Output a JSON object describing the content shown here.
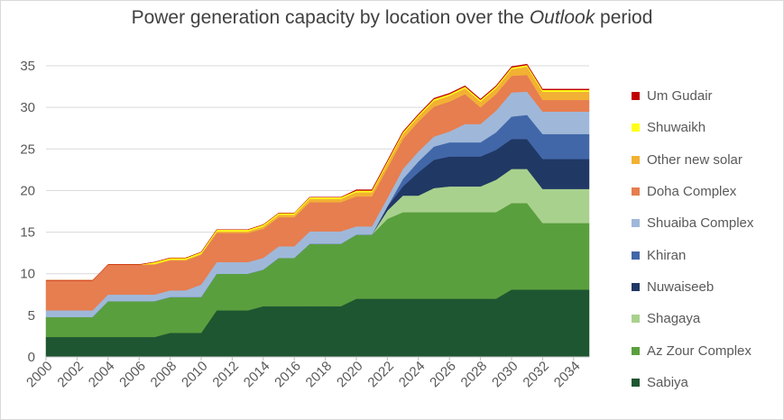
{
  "chart_data": {
    "type": "area",
    "stacked": true,
    "title_main": "Power generation capacity by location over the ",
    "title_italic": "Outlook",
    "title_end": " period",
    "xlabel": "",
    "ylabel": "",
    "ylim": [
      0,
      35
    ],
    "y_ticks": [
      "0",
      "5",
      "10",
      "15",
      "20",
      "25",
      "30",
      "35"
    ],
    "x_ticks": [
      "2000",
      "2002",
      "2004",
      "2006",
      "2008",
      "2010",
      "2012",
      "2014",
      "2016",
      "2018",
      "2020",
      "2022",
      "2024",
      "2026",
      "2028",
      "2030",
      "2032",
      "2034"
    ],
    "grid": true,
    "legend_position": "right",
    "x": [
      2000,
      2001,
      2002,
      2003,
      2004,
      2005,
      2006,
      2007,
      2008,
      2009,
      2010,
      2011,
      2012,
      2013,
      2014,
      2015,
      2016,
      2017,
      2018,
      2019,
      2020,
      2021,
      2022,
      2023,
      2024,
      2025,
      2026,
      2027,
      2028,
      2029,
      2030,
      2031,
      2032,
      2033,
      2034,
      2035
    ],
    "series": [
      {
        "name": "Sabiya",
        "color": "#1e5631",
        "values": [
          2.4,
          2.4,
          2.4,
          2.4,
          2.4,
          2.4,
          2.4,
          2.4,
          2.9,
          2.9,
          2.9,
          5.6,
          5.6,
          5.6,
          6.1,
          6.1,
          6.1,
          6.1,
          6.1,
          6.1,
          7.0,
          7.0,
          7.0,
          7.0,
          7.0,
          7.0,
          7.0,
          7.0,
          7.0,
          7.0,
          8.1,
          8.1,
          8.1,
          8.1,
          8.1,
          8.1
        ]
      },
      {
        "name": "Az Zour Complex",
        "color": "#5a9f3e",
        "values": [
          2.4,
          2.4,
          2.4,
          2.4,
          4.3,
          4.3,
          4.3,
          4.3,
          4.3,
          4.3,
          4.3,
          4.4,
          4.4,
          4.4,
          4.4,
          5.8,
          5.8,
          7.5,
          7.5,
          7.5,
          7.7,
          7.7,
          9.6,
          10.4,
          10.4,
          10.4,
          10.4,
          10.4,
          10.4,
          10.4,
          10.4,
          10.4,
          8.0,
          8.0,
          8.0,
          8.0
        ]
      },
      {
        "name": "Shagaya",
        "color": "#a9d18e",
        "values": [
          0,
          0,
          0,
          0,
          0,
          0,
          0,
          0,
          0,
          0,
          0,
          0,
          0,
          0,
          0,
          0,
          0,
          0,
          0,
          0,
          0,
          0,
          1.0,
          2.0,
          2.0,
          2.9,
          3.1,
          3.1,
          3.1,
          3.9,
          4.1,
          4.1,
          4.1,
          4.1,
          4.1,
          4.1
        ]
      },
      {
        "name": "Nuwaiseeb",
        "color": "#203864",
        "values": [
          0,
          0,
          0,
          0,
          0,
          0,
          0,
          0,
          0,
          0,
          0,
          0,
          0,
          0,
          0,
          0,
          0,
          0,
          0,
          0,
          0,
          0,
          0.5,
          1.1,
          2.8,
          3.4,
          3.6,
          3.6,
          3.6,
          3.6,
          3.6,
          3.6,
          3.6,
          3.6,
          3.6,
          3.6
        ]
      },
      {
        "name": "Khiran",
        "color": "#4267a9",
        "values": [
          0,
          0,
          0,
          0,
          0,
          0,
          0,
          0,
          0,
          0,
          0,
          0,
          0,
          0,
          0,
          0,
          0,
          0,
          0,
          0,
          0,
          0,
          0,
          0.9,
          1.3,
          1.6,
          1.7,
          1.7,
          1.7,
          2.1,
          2.7,
          2.9,
          3.0,
          3.0,
          3.0,
          3.0
        ]
      },
      {
        "name": "Shuaiba Complex",
        "color": "#9fb8d9",
        "values": [
          0.8,
          0.8,
          0.8,
          0.8,
          0.8,
          0.8,
          0.8,
          0.8,
          0.8,
          0.8,
          1.5,
          1.4,
          1.4,
          1.4,
          1.4,
          1.4,
          1.4,
          1.5,
          1.5,
          1.5,
          1.0,
          1.0,
          1.0,
          1.2,
          1.2,
          1.2,
          1.3,
          2.2,
          2.2,
          2.6,
          2.9,
          2.8,
          2.7,
          2.7,
          2.7,
          2.7
        ]
      },
      {
        "name": "Doha Complex",
        "color": "#e67e50",
        "values": [
          3.6,
          3.6,
          3.6,
          3.6,
          3.6,
          3.6,
          3.6,
          3.6,
          3.6,
          3.6,
          3.6,
          3.5,
          3.5,
          3.5,
          3.5,
          3.5,
          3.5,
          3.5,
          3.5,
          3.5,
          3.6,
          3.6,
          3.6,
          3.6,
          3.6,
          3.6,
          3.6,
          3.6,
          2.0,
          2.0,
          2.0,
          2.0,
          1.4,
          1.4,
          1.4,
          1.4
        ]
      },
      {
        "name": "Other new solar",
        "color": "#f2b134",
        "values": [
          0,
          0,
          0,
          0,
          0,
          0,
          0,
          0.1,
          0.1,
          0.1,
          0.1,
          0.2,
          0.2,
          0.2,
          0.3,
          0.3,
          0.3,
          0.4,
          0.4,
          0.4,
          0.5,
          0.5,
          0.6,
          0.6,
          0.6,
          0.7,
          0.7,
          0.7,
          0.7,
          0.7,
          0.8,
          1.0,
          1.0,
          1.0,
          1.0,
          1.0
        ]
      },
      {
        "name": "Shuwaikh",
        "color": "#ffff1a",
        "values": [
          0,
          0,
          0,
          0,
          0,
          0,
          0,
          0.2,
          0.2,
          0.2,
          0.2,
          0.2,
          0.2,
          0.2,
          0.2,
          0.2,
          0.2,
          0.2,
          0.2,
          0.2,
          0.2,
          0.2,
          0.2,
          0.2,
          0.2,
          0.2,
          0.2,
          0.2,
          0.2,
          0.2,
          0.2,
          0.2,
          0.2,
          0.2,
          0.2,
          0.2
        ]
      },
      {
        "name": "Um Gudair",
        "color": "#c00000",
        "values": [
          0,
          0,
          0,
          0,
          0,
          0,
          0,
          0,
          0,
          0,
          0,
          0,
          0,
          0,
          0,
          0,
          0,
          0,
          0,
          0,
          0.1,
          0.1,
          0.1,
          0.1,
          0.1,
          0.1,
          0.1,
          0.1,
          0.1,
          0.1,
          0.1,
          0.1,
          0.1,
          0.1,
          0.1,
          0.1
        ]
      }
    ]
  },
  "legend_order": [
    "Um Gudair",
    "Shuwaikh",
    "Other new solar",
    "Doha Complex",
    "Shuaiba Complex",
    "Khiran",
    "Nuwaiseeb",
    "Shagaya",
    "Az Zour Complex",
    "Sabiya"
  ],
  "colors": {
    "grid": "#d9d9d9",
    "axis": "#bfbfbf",
    "text": "#595959",
    "title": "#404040"
  }
}
